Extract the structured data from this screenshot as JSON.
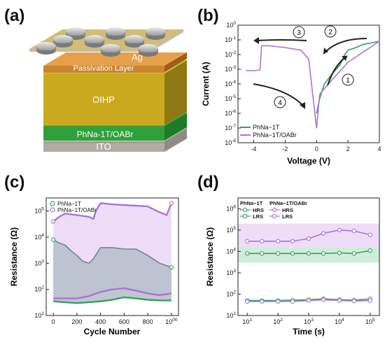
{
  "panels": {
    "a": {
      "tag": "(a)",
      "layers": {
        "electrode": "Ag",
        "passivation": "Passivation Layer",
        "perovskite": "OIHP",
        "htl": "PhNa-1T/OABr",
        "substrate": "ITO"
      }
    },
    "b": {
      "tag": "(b)"
    },
    "c": {
      "tag": "(c)"
    },
    "d": {
      "tag": "(d)"
    }
  },
  "colors": {
    "green": "#3a9d63",
    "purple": "#a874d6",
    "green_fill": "#c9ecd5",
    "purple_fill": "#ecd9f6",
    "grey_fill": "#b4bec9",
    "grey_line": "#6e8797",
    "arrow": "#222222",
    "film": "#c7a92e"
  },
  "chart_data": [
    {
      "panel": "b",
      "type": "line",
      "xlabel": "Voltage (V)",
      "ylabel": "Current (A)",
      "xlim": [
        -5,
        4
      ],
      "ylim_log10": [
        -8,
        0
      ],
      "y_scale": "log",
      "x_ticks": [
        "-4",
        "-2",
        "0",
        "2",
        "4"
      ],
      "y_ticks": [
        "10-8",
        "10-7",
        "10-6",
        "10-5",
        "10-4",
        "10-3",
        "10-2",
        "10-1",
        "100"
      ],
      "legend": {
        "position": "bottom-left",
        "entries": [
          "PhNa−1T",
          "PhNa−1T/OABr"
        ]
      },
      "sweep_labels": [
        "1",
        "2",
        "3",
        "4"
      ],
      "series": [
        {
          "name": "PhNa−1T",
          "color": "#3a9d63",
          "x": [
            0.0,
            0.2,
            0.5,
            1.0,
            1.5,
            1.8,
            2.0,
            2.5,
            3.0,
            4.0
          ],
          "y": [
            1e-06,
            1e-05,
            0.0001,
            0.0005,
            0.002,
            0.01,
            0.02,
            0.03,
            0.05,
            0.08
          ]
        },
        {
          "name": "PhNa−1T/OABr",
          "color": "#a874d6",
          "x": [
            -4.5,
            -4.0,
            -3.6,
            -3.5,
            -3.0,
            -2.0,
            -1.0,
            -0.5,
            0.0,
            0.2,
            1.0,
            2.0,
            4.0
          ],
          "y": [
            0.0008,
            0.0008,
            0.0009,
            0.04,
            0.04,
            0.03,
            0.02,
            0.005,
            1e-07,
            2e-05,
            0.0002,
            0.003,
            0.08
          ]
        }
      ]
    },
    {
      "panel": "c",
      "type": "scatter",
      "xlabel": "Cycle Number",
      "ylabel": "Resistance (Ω)",
      "xlim": [
        -60,
        1060
      ],
      "ylim_log10": [
        1,
        5.5
      ],
      "y_scale": "log",
      "x_ticks": [
        "0",
        "200",
        "400",
        "600",
        "800",
        "1000"
      ],
      "y_ticks": [
        "101",
        "102",
        "103",
        "104",
        "105"
      ],
      "legend": {
        "position": "top-left",
        "entries": [
          "PhNa−1T",
          "PhNa−1T/OABr"
        ]
      },
      "series": [
        {
          "name": "PhNa−1T HRS",
          "color": "#6e8797",
          "x": [
            0,
            50,
            100,
            150,
            200,
            250,
            300,
            340,
            400,
            500,
            600,
            700,
            800,
            900,
            1000
          ],
          "y": [
            8000,
            6000,
            5000,
            3000,
            2000,
            1200,
            1000,
            1500,
            4000,
            4000,
            3500,
            3500,
            2000,
            1000,
            700
          ]
        },
        {
          "name": "PhNa−1T LRS",
          "color": "#3a9d63",
          "x": [
            0,
            100,
            200,
            300,
            400,
            500,
            600,
            700,
            800,
            900,
            1000
          ],
          "y": [
            35,
            32,
            30,
            32,
            35,
            40,
            50,
            45,
            40,
            38,
            38
          ]
        },
        {
          "name": "PhNa−1T/OABr HRS",
          "color": "#a874d6",
          "x": [
            0,
            50,
            100,
            200,
            300,
            340,
            360,
            400,
            500,
            600,
            700,
            800,
            900,
            960,
            1000
          ],
          "y": [
            40000,
            60000,
            80000,
            70000,
            60000,
            50000,
            100000,
            200000,
            180000,
            170000,
            160000,
            150000,
            90000,
            70000,
            200000
          ]
        },
        {
          "name": "PhNa−1T/OABr LRS",
          "color": "#a874d6",
          "x": [
            0,
            100,
            200,
            300,
            400,
            500,
            600,
            700,
            800,
            900,
            1000
          ],
          "y": [
            45,
            45,
            45,
            55,
            80,
            100,
            110,
            90,
            70,
            60,
            70
          ]
        }
      ]
    },
    {
      "panel": "d",
      "type": "scatter",
      "xlabel": "Time (s)",
      "ylabel": "Resistance (Ω)",
      "xlim_log10": [
        0.7,
        5.3
      ],
      "ylim_log10": [
        1,
        6.5
      ],
      "x_scale": "log",
      "y_scale": "log",
      "x_ticks": [
        "101",
        "102",
        "103",
        "104",
        "105"
      ],
      "y_ticks": [
        "101",
        "102",
        "103",
        "104",
        "105",
        "106"
      ],
      "legend": {
        "position": "top-left",
        "headers": [
          "PhNa−1T",
          "PhNa−1T/OABr"
        ],
        "rows": [
          "HRS",
          "LRS"
        ]
      },
      "series": [
        {
          "name": "PhNa−1T HRS",
          "color": "#3a9d63",
          "x": [
            10,
            30,
            100,
            300,
            1000,
            3000,
            10000,
            30000,
            100000
          ],
          "y": [
            8000,
            8000,
            8000,
            8000,
            8000,
            8000,
            8500,
            8000,
            11000
          ]
        },
        {
          "name": "PhNa−1T/OABr HRS",
          "color": "#a874d6",
          "x": [
            10,
            30,
            100,
            300,
            1000,
            3000,
            10000,
            30000,
            100000
          ],
          "y": [
            30000,
            30000,
            30000,
            30000,
            40000,
            70000,
            100000,
            90000,
            60000
          ]
        },
        {
          "name": "PhNa−1T LRS",
          "color": "#3a9d63",
          "x": [
            10,
            30,
            100,
            300,
            1000,
            3000,
            10000,
            30000,
            100000
          ],
          "y": [
            50,
            50,
            50,
            52,
            55,
            60,
            55,
            52,
            60
          ]
        },
        {
          "name": "PhNa−1T/OABr LRS",
          "color": "#a874d6",
          "x": [
            10,
            30,
            100,
            300,
            1000,
            3000,
            10000,
            30000,
            100000
          ],
          "y": [
            45,
            45,
            45,
            45,
            50,
            55,
            50,
            48,
            50
          ]
        }
      ]
    }
  ]
}
